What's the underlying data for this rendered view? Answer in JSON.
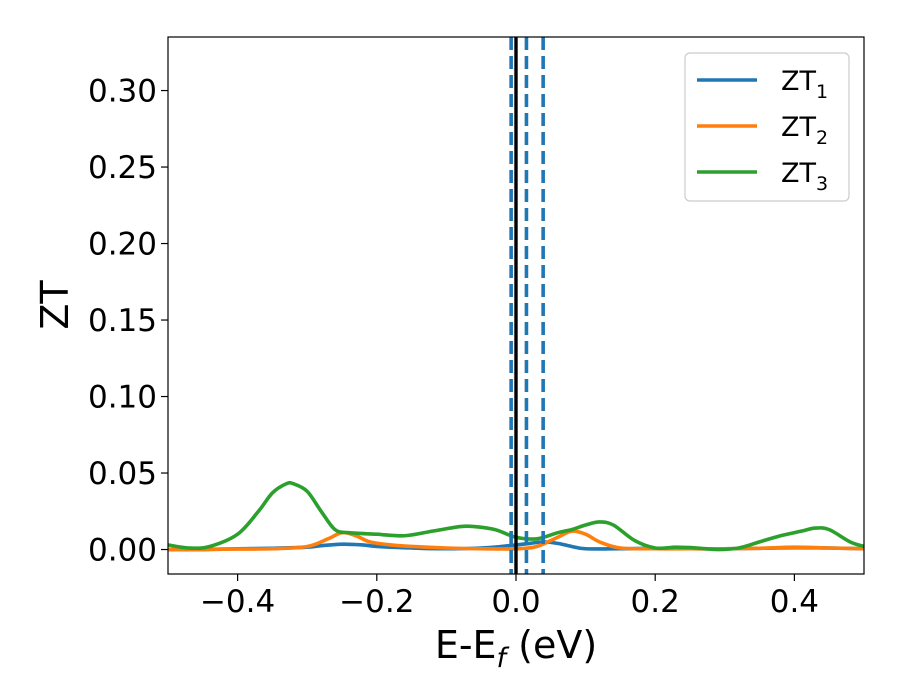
{
  "chart_data": {
    "type": "line",
    "xlabel": {
      "main": "E-E",
      "sub": "f",
      "suffix": " (eV)"
    },
    "ylabel": "ZT",
    "xlim": [
      -0.5,
      0.5
    ],
    "ylim": [
      -0.016,
      0.335
    ],
    "xticks": [
      {
        "value": -0.4,
        "label": "−0.4"
      },
      {
        "value": -0.2,
        "label": "−0.2"
      },
      {
        "value": 0.0,
        "label": "0.0"
      },
      {
        "value": 0.2,
        "label": "0.2"
      },
      {
        "value": 0.4,
        "label": "0.4"
      }
    ],
    "yticks": [
      {
        "value": 0.0,
        "label": "0.00"
      },
      {
        "value": 0.05,
        "label": "0.05"
      },
      {
        "value": 0.1,
        "label": "0.10"
      },
      {
        "value": 0.15,
        "label": "0.15"
      },
      {
        "value": 0.2,
        "label": "0.20"
      },
      {
        "value": 0.25,
        "label": "0.25"
      },
      {
        "value": 0.3,
        "label": "0.30"
      }
    ],
    "grid": false,
    "legend_position": "top-right",
    "vertical_lines": [
      {
        "x": 0.0,
        "style": "solid",
        "color": "#000000"
      },
      {
        "x": -0.007,
        "style": "dashed",
        "color": "#1f77b4"
      },
      {
        "x": 0.015,
        "style": "dashed",
        "color": "#1f77b4"
      },
      {
        "x": 0.039,
        "style": "dashed",
        "color": "#1f77b4"
      }
    ],
    "series": [
      {
        "name": "ZT",
        "sub": "1",
        "color": "#1f77b4",
        "x": [
          -0.5,
          -0.45,
          -0.4,
          -0.35,
          -0.3,
          -0.28,
          -0.25,
          -0.22,
          -0.2,
          -0.15,
          -0.1,
          -0.05,
          -0.02,
          0.0,
          0.02,
          0.04,
          0.06,
          0.08,
          0.1,
          0.15,
          0.2,
          0.25,
          0.3,
          0.35,
          0.4,
          0.45,
          0.5
        ],
        "y": [
          0.0,
          0.0,
          0.0005,
          0.0008,
          0.0015,
          0.0025,
          0.0035,
          0.003,
          0.002,
          0.001,
          0.0005,
          0.001,
          0.002,
          0.003,
          0.004,
          0.005,
          0.004,
          0.002,
          0.0005,
          0.0005,
          0.0008,
          0.0005,
          0.0005,
          0.0008,
          0.0012,
          0.001,
          0.0005
        ]
      },
      {
        "name": "ZT",
        "sub": "2",
        "color": "#ff7f0e",
        "x": [
          -0.5,
          -0.45,
          -0.4,
          -0.35,
          -0.3,
          -0.27,
          -0.25,
          -0.23,
          -0.21,
          -0.18,
          -0.15,
          -0.1,
          -0.05,
          0.0,
          0.03,
          0.06,
          0.08,
          0.1,
          0.12,
          0.15,
          0.2,
          0.25,
          0.3,
          0.35,
          0.4,
          0.45,
          0.5
        ],
        "y": [
          0.0,
          0.0,
          0.0003,
          0.0005,
          0.002,
          0.007,
          0.011,
          0.009,
          0.005,
          0.003,
          0.002,
          0.001,
          0.0005,
          0.0005,
          0.002,
          0.008,
          0.012,
          0.01,
          0.005,
          0.001,
          0.0005,
          0.0005,
          0.0005,
          0.0008,
          0.0015,
          0.001,
          0.0005
        ]
      },
      {
        "name": "ZT",
        "sub": "3",
        "color": "#2ca02c",
        "x": [
          -0.5,
          -0.47,
          -0.44,
          -0.4,
          -0.37,
          -0.35,
          -0.33,
          -0.32,
          -0.3,
          -0.28,
          -0.26,
          -0.24,
          -0.2,
          -0.16,
          -0.12,
          -0.08,
          -0.06,
          -0.03,
          0.0,
          0.03,
          0.06,
          0.08,
          0.1,
          0.12,
          0.14,
          0.17,
          0.2,
          0.23,
          0.26,
          0.29,
          0.32,
          0.35,
          0.38,
          0.41,
          0.43,
          0.45,
          0.48,
          0.5
        ],
        "y": [
          0.003,
          0.001,
          0.002,
          0.01,
          0.025,
          0.037,
          0.043,
          0.043,
          0.038,
          0.025,
          0.013,
          0.011,
          0.01,
          0.009,
          0.012,
          0.015,
          0.015,
          0.013,
          0.008,
          0.007,
          0.011,
          0.013,
          0.016,
          0.018,
          0.016,
          0.006,
          0.001,
          0.0015,
          0.001,
          0.0,
          0.001,
          0.005,
          0.009,
          0.012,
          0.014,
          0.013,
          0.005,
          0.002
        ]
      }
    ]
  }
}
